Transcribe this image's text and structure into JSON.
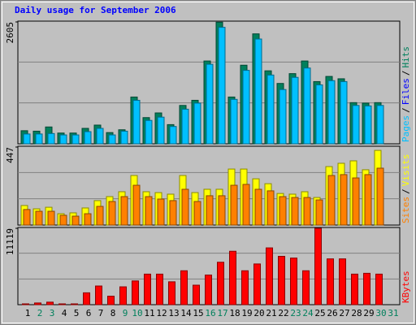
{
  "chart_data": [
    {
      "type": "bar",
      "title": "Daily usage for September 2006",
      "ylim": [
        0,
        2605
      ],
      "yticks": [
        2605
      ],
      "legend": [
        {
          "text": "Pages",
          "color": "#00c0ff"
        },
        {
          "text": "/",
          "color": "#000000"
        },
        {
          "text": "Files",
          "color": "#0000ff"
        },
        {
          "text": "/",
          "color": "#000000"
        },
        {
          "text": "Hits",
          "color": "#00805c"
        }
      ],
      "series": [
        {
          "name": "Hits",
          "color": "#00805c",
          "values": [
            280,
            270,
            360,
            230,
            230,
            330,
            400,
            240,
            300,
            1000,
            560,
            660,
            410,
            820,
            930,
            1770,
            2600,
            1000,
            1680,
            2350,
            1560,
            1290,
            1500,
            1770,
            1330,
            1440,
            1390,
            880,
            870,
            880,
            null
          ]
        },
        {
          "name": "Pages",
          "color": "#00c0ff",
          "values": [
            210,
            210,
            220,
            190,
            190,
            260,
            330,
            190,
            270,
            930,
            500,
            570,
            370,
            740,
            870,
            1700,
            2490,
            950,
            1570,
            2240,
            1470,
            1160,
            1420,
            1620,
            1260,
            1350,
            1330,
            820,
            810,
            820,
            null
          ]
        }
      ]
    },
    {
      "type": "bar",
      "ylim": [
        0,
        447
      ],
      "yticks": [
        447
      ],
      "legend": [
        {
          "text": "Sites",
          "color": "#ff8000"
        },
        {
          "text": "/",
          "color": "#000000"
        },
        {
          "text": "Visits",
          "color": "#ffff00"
        }
      ],
      "series": [
        {
          "name": "Visits",
          "color": "#ffff00",
          "values": [
            112,
            93,
            102,
            65,
            70,
            98,
            140,
            163,
            191,
            284,
            191,
            186,
            177,
            284,
            186,
            205,
            205,
            321,
            321,
            265,
            237,
            181,
            177,
            191,
            158,
            335,
            354,
            368,
            317,
            428,
            null
          ]
        },
        {
          "name": "Sites",
          "color": "#ff8000",
          "values": [
            89,
            79,
            79,
            56,
            51,
            65,
            107,
            135,
            163,
            228,
            163,
            149,
            140,
            205,
            135,
            168,
            168,
            228,
            233,
            205,
            196,
            163,
            158,
            158,
            144,
            284,
            289,
            270,
            289,
            326,
            null
          ]
        }
      ]
    },
    {
      "type": "bar",
      "ylim": [
        0,
        11119
      ],
      "yticks": [
        11119
      ],
      "legend": [
        {
          "text": "KBytes",
          "color": "#ff0000"
        }
      ],
      "categories": [
        "1",
        "2",
        "3",
        "4",
        "5",
        "6",
        "7",
        "8",
        "9",
        "10",
        "11",
        "12",
        "13",
        "14",
        "15",
        "16",
        "17",
        "18",
        "19",
        "20",
        "21",
        "22",
        "23",
        "24",
        "25",
        "26",
        "27",
        "28",
        "29",
        "30",
        "31"
      ],
      "category_colors": [
        "#000000",
        "#00805c",
        "#00805c",
        "#000000",
        "#000000",
        "#000000",
        "#000000",
        "#000000",
        "#00805c",
        "#00805c",
        "#000000",
        "#000000",
        "#000000",
        "#000000",
        "#000000",
        "#00805c",
        "#00805c",
        "#000000",
        "#000000",
        "#000000",
        "#000000",
        "#000000",
        "#00805c",
        "#00805c",
        "#000000",
        "#000000",
        "#000000",
        "#000000",
        "#000000",
        "#00805c",
        "#00805c"
      ],
      "series": [
        {
          "name": "KBytes",
          "color": "#ff0000",
          "values": [
            120,
            250,
            370,
            120,
            120,
            1730,
            2720,
            1240,
            2600,
            3460,
            4450,
            4450,
            3330,
            4940,
            2840,
            4320,
            6180,
            7780,
            4940,
            5930,
            8270,
            7040,
            6790,
            4940,
            11119,
            6670,
            6670,
            4450,
            4570,
            4450,
            null
          ]
        }
      ]
    }
  ]
}
